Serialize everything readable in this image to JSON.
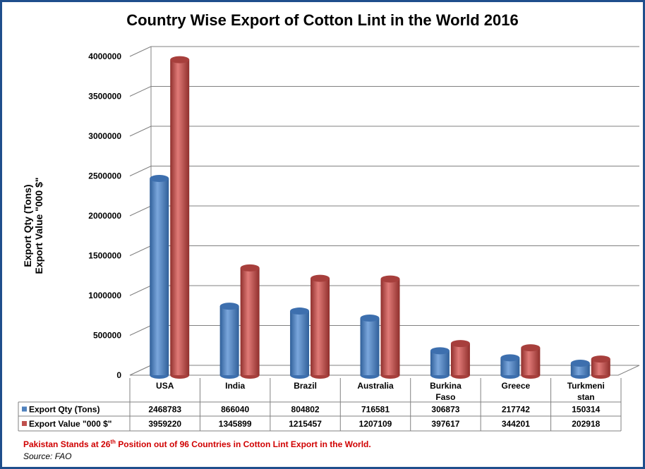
{
  "colors": {
    "series1": "#4f81bd",
    "series2": "#c0504d",
    "frame": "#1f4e8c",
    "note": "#d00000"
  },
  "footnote": {
    "before": "Pakistan Stands at 26",
    "sup": "th",
    "after": " Position out of 96 Countries in Cotton Lint Export in the World."
  },
  "source": "Source: FAO",
  "chart_data": {
    "type": "bar",
    "title": "Country Wise Export of Cotton Lint in the World 2016",
    "ylabel_lines": [
      "Export Qty  (Tons)",
      "Export Value \"000 $\""
    ],
    "ylim": [
      0,
      4000000
    ],
    "yticks": [
      "4000000",
      "3500000",
      "3000000",
      "2500000",
      "2000000",
      "1500000",
      "1000000",
      "500000",
      "0"
    ],
    "grid": true,
    "legend": "data-table-rows",
    "categories": [
      "USA",
      "India",
      "Brazil",
      "Australia",
      "Burkina Faso",
      "Greece",
      "Turkmenistan"
    ],
    "category_lines": [
      [
        "USA"
      ],
      [
        "India"
      ],
      [
        "Brazil"
      ],
      [
        "Australia"
      ],
      [
        "Burkina",
        "Faso"
      ],
      [
        "Greece"
      ],
      [
        "Turkmeni",
        "stan"
      ]
    ],
    "series": [
      {
        "name": "Export Qty (Tons)",
        "values": [
          2468783,
          866040,
          804802,
          716581,
          306873,
          217742,
          150314
        ]
      },
      {
        "name": "Export Value \"000 $\"",
        "values": [
          3959220,
          1345899,
          1215457,
          1207109,
          397617,
          344201,
          202918
        ]
      }
    ]
  }
}
